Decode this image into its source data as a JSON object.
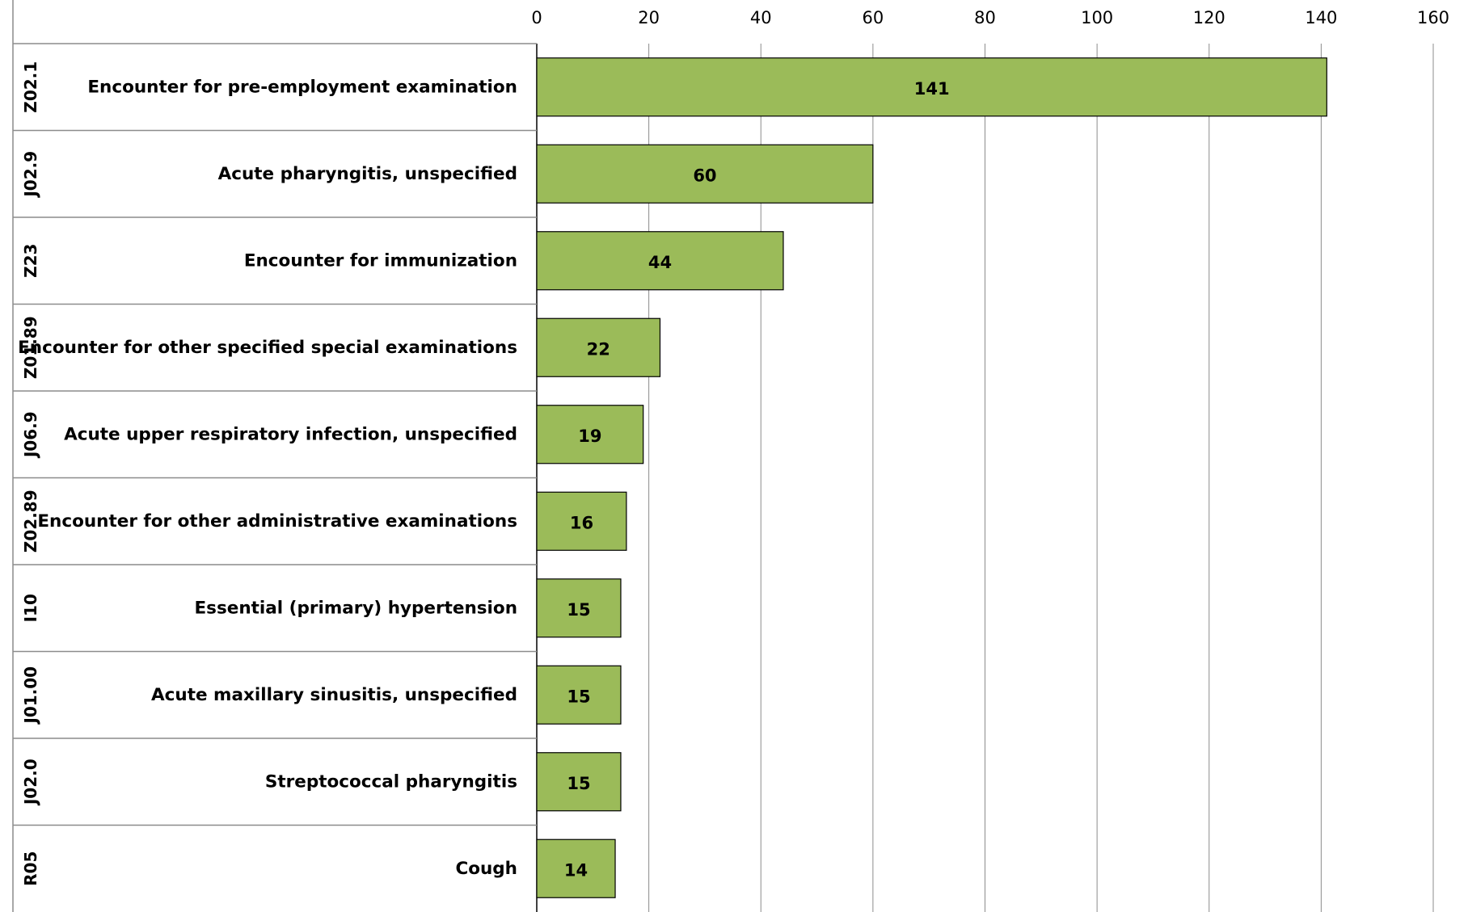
{
  "chart_data": {
    "type": "bar",
    "orientation": "horizontal",
    "title": "",
    "xlabel": "",
    "ylabel": "",
    "xlim": [
      0,
      160
    ],
    "ticks": [
      0,
      20,
      40,
      60,
      80,
      100,
      120,
      140,
      160
    ],
    "grid": true,
    "bar_color": "#9BBB59",
    "bar_edge_color": "#000000",
    "grid_color": "#8C8C8C",
    "categories": [
      {
        "code": "Z02.1",
        "label": "Encounter for pre-employment examination",
        "value": 141
      },
      {
        "code": "J02.9",
        "label": "Acute pharyngitis, unspecified",
        "value": 60
      },
      {
        "code": "Z23",
        "label": "Encounter for immunization",
        "value": 44
      },
      {
        "code": "Z01.89",
        "label": "Encounter for other specified special examinations",
        "value": 22
      },
      {
        "code": "J06.9",
        "label": "Acute upper respiratory infection, unspecified",
        "value": 19
      },
      {
        "code": "Z02.89",
        "label": "Encounter for other administrative examinations",
        "value": 16
      },
      {
        "code": "I10",
        "label": "Essential (primary) hypertension",
        "value": 15
      },
      {
        "code": "J01.00",
        "label": "Acute maxillary sinusitis, unspecified",
        "value": 15
      },
      {
        "code": "J02.0",
        "label": "Streptococcal pharyngitis",
        "value": 15
      },
      {
        "code": "R05",
        "label": "Cough",
        "value": 14
      }
    ]
  }
}
